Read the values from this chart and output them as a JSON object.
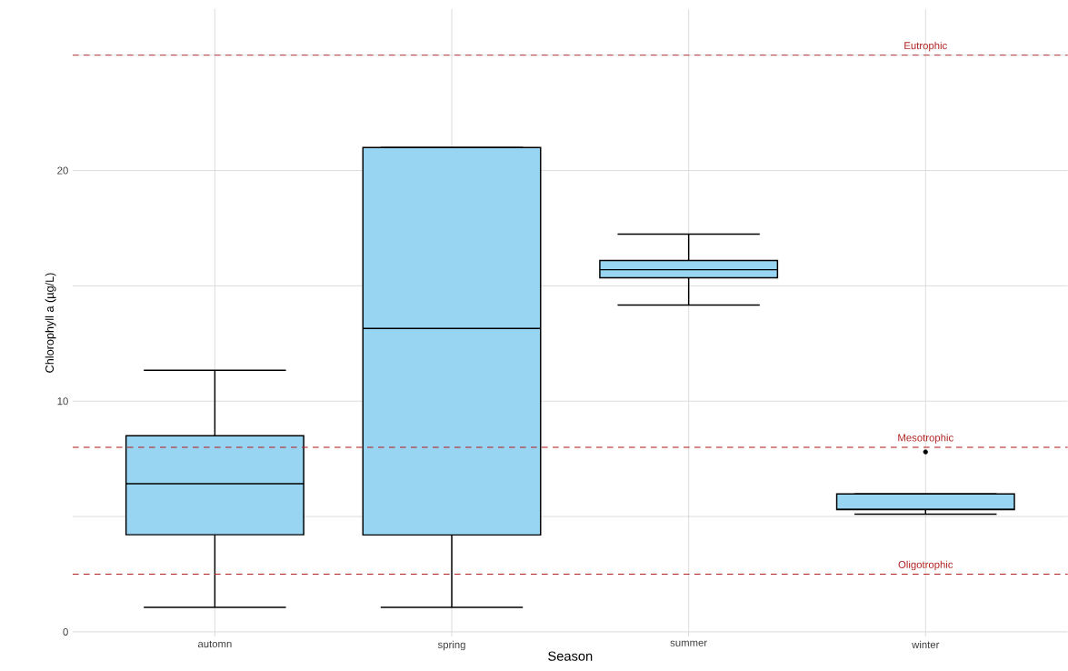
{
  "chart_data": {
    "type": "box",
    "xlabel": "Season",
    "ylabel": "Chlorophyll a (µg/L)",
    "categories": [
      "automn",
      "spring",
      "summer",
      "winter"
    ],
    "color": "#97d5f2",
    "boxes": [
      {
        "low": 1.06,
        "q1": 4.21,
        "median": 6.42,
        "q3": 8.5,
        "high": 11.34
      },
      {
        "low": 1.06,
        "q1": 4.2,
        "median": 13.15,
        "q3": 21.0,
        "high": 21.0
      },
      {
        "low": 14.17,
        "q1": 15.35,
        "median": 15.7,
        "q3": 16.1,
        "high": 17.24
      },
      {
        "low": 5.1,
        "q1": 5.3,
        "median": 5.31,
        "q3": 5.98,
        "high": 5.98,
        "outliers": [
          7.8
        ]
      }
    ],
    "ylim": [
      -0.2,
      27
    ],
    "yticks": [
      0,
      {
        "value": 5,
        "label": null
      },
      10,
      {
        "value": 15,
        "label": null
      },
      20,
      {
        "value": 25,
        "label": null
      }
    ],
    "grid": true,
    "ref_lines": [
      {
        "axis": "y",
        "value": 25,
        "label": "Eutrophic",
        "color": "#b22222",
        "line_style": "dashed"
      },
      {
        "axis": "y",
        "value": 8,
        "label": "Mesotrophic",
        "color": "#b22222",
        "line_style": "dashed"
      },
      {
        "axis": "y",
        "value": 2.5,
        "label": "Oligotrophic",
        "color": "#b22222",
        "line_style": "dashed"
      }
    ]
  }
}
